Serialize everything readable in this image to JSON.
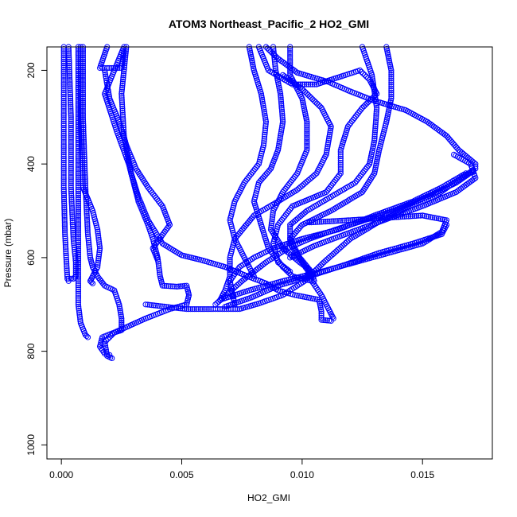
{
  "chart_data": {
    "type": "scatter",
    "title": "ATOM3 Northeast_Pacific_2 HO2_GMI",
    "xlabel": "HO2_GMI",
    "ylabel": "Pressure (mbar)",
    "xlim": [
      -0.0006,
      0.0179
    ],
    "ylim": [
      1030,
      150
    ],
    "y_reversed": true,
    "grid": false,
    "legend": "none",
    "marker": "open-circle",
    "color": "#0000ff",
    "x_ticks": [
      0.0,
      0.005,
      0.01,
      0.015
    ],
    "x_tick_labels": [
      "0.000",
      "0.005",
      "0.010",
      "0.015"
    ],
    "y_ticks": [
      200,
      400,
      600,
      800,
      1000
    ],
    "y_tick_labels": [
      "200",
      "400",
      "600",
      "800",
      "1000"
    ],
    "series": [
      {
        "points": [
          [
            0.0001,
            150
          ],
          [
            0.0001,
            300
          ],
          [
            0.0001,
            450
          ],
          [
            0.00015,
            550
          ],
          [
            0.0002,
            600
          ],
          [
            0.00025,
            645
          ],
          [
            0.0003,
            650
          ]
        ]
      },
      {
        "points": [
          [
            0.0003,
            150
          ],
          [
            0.0004,
            300
          ],
          [
            0.0004,
            450
          ],
          [
            0.0005,
            560
          ],
          [
            0.0006,
            610
          ],
          [
            0.0006,
            640
          ],
          [
            0.0005,
            645
          ],
          [
            0.0003,
            645
          ]
        ]
      },
      {
        "points": [
          [
            0.0007,
            150
          ],
          [
            0.0007,
            250
          ],
          [
            0.0007,
            350
          ],
          [
            0.0007,
            450
          ],
          [
            0.0007,
            550
          ],
          [
            0.0007,
            650
          ],
          [
            0.0007,
            700
          ],
          [
            0.0008,
            740
          ],
          [
            0.001,
            765
          ],
          [
            0.0011,
            770
          ]
        ]
      },
      {
        "points": [
          [
            0.0008,
            150
          ],
          [
            0.0008,
            300
          ],
          [
            0.0009,
            450
          ],
          [
            0.0013,
            500
          ],
          [
            0.0015,
            540
          ],
          [
            0.0016,
            580
          ],
          [
            0.0015,
            620
          ],
          [
            0.0013,
            640
          ],
          [
            0.0012,
            650
          ],
          [
            0.0013,
            655
          ]
        ]
      },
      {
        "points": [
          [
            0.0009,
            150
          ],
          [
            0.0009,
            300
          ],
          [
            0.001,
            450
          ],
          [
            0.0011,
            550
          ],
          [
            0.0012,
            600
          ],
          [
            0.0013,
            620
          ],
          [
            0.0015,
            640
          ],
          [
            0.0018,
            660
          ],
          [
            0.0022,
            670
          ],
          [
            0.0024,
            700
          ],
          [
            0.0025,
            730
          ],
          [
            0.0025,
            755
          ],
          [
            0.0022,
            760
          ],
          [
            0.0017,
            770
          ],
          [
            0.0016,
            790
          ],
          [
            0.0018,
            805
          ],
          [
            0.002,
            808
          ]
        ]
      },
      {
        "points": [
          [
            0.0019,
            150
          ],
          [
            0.0016,
            195
          ],
          [
            0.0019,
            195
          ],
          [
            0.0025,
            195
          ],
          [
            0.0026,
            160
          ]
        ]
      },
      {
        "points": [
          [
            0.0026,
            150
          ],
          [
            0.0018,
            250
          ],
          [
            0.0023,
            330
          ],
          [
            0.0028,
            400
          ],
          [
            0.0032,
            480
          ],
          [
            0.0036,
            530
          ],
          [
            0.0038,
            560
          ],
          [
            0.004,
            600
          ],
          [
            0.0041,
            640
          ],
          [
            0.0042,
            660
          ],
          [
            0.0048,
            662
          ],
          [
            0.0052,
            660
          ],
          [
            0.0053,
            680
          ],
          [
            0.0052,
            700
          ],
          [
            0.0045,
            710
          ],
          [
            0.0035,
            730
          ],
          [
            0.0022,
            760
          ],
          [
            0.0018,
            780
          ],
          [
            0.0019,
            810
          ],
          [
            0.0021,
            815
          ]
        ]
      },
      {
        "points": [
          [
            0.0018,
            200
          ],
          [
            0.002,
            260
          ],
          [
            0.0024,
            310
          ],
          [
            0.0027,
            360
          ],
          [
            0.0031,
            410
          ],
          [
            0.0036,
            450
          ],
          [
            0.0042,
            490
          ],
          [
            0.0045,
            530
          ],
          [
            0.0038,
            580
          ],
          [
            0.004,
            605
          ]
        ]
      },
      {
        "points": [
          [
            0.0027,
            150
          ],
          [
            0.0025,
            250
          ],
          [
            0.0026,
            340
          ],
          [
            0.0029,
            420
          ],
          [
            0.0032,
            470
          ],
          [
            0.0036,
            520
          ],
          [
            0.0042,
            570
          ],
          [
            0.005,
            595
          ],
          [
            0.0058,
            605
          ],
          [
            0.0068,
            620
          ],
          [
            0.0075,
            635
          ],
          [
            0.0085,
            655
          ],
          [
            0.009,
            670
          ],
          [
            0.0097,
            680
          ],
          [
            0.0107,
            690
          ],
          [
            0.0108,
            715
          ],
          [
            0.0108,
            733
          ],
          [
            0.0112,
            735
          ]
        ]
      },
      {
        "points": [
          [
            0.0035,
            700
          ],
          [
            0.0052,
            710
          ],
          [
            0.0063,
            710
          ],
          [
            0.0065,
            710
          ],
          [
            0.0074,
            710
          ],
          [
            0.0082,
            698
          ],
          [
            0.0092,
            680
          ],
          [
            0.0101,
            650
          ],
          [
            0.0109,
            610
          ],
          [
            0.012,
            560
          ],
          [
            0.0133,
            520
          ],
          [
            0.0145,
            490
          ],
          [
            0.0155,
            470
          ],
          [
            0.0163,
            440
          ],
          [
            0.0172,
            410
          ],
          [
            0.0172,
            400
          ],
          [
            0.0165,
            370
          ],
          [
            0.016,
            340
          ],
          [
            0.0152,
            310
          ],
          [
            0.0143,
            285
          ],
          [
            0.013,
            265
          ],
          [
            0.012,
            245
          ],
          [
            0.0111,
            225
          ],
          [
            0.0098,
            205
          ],
          [
            0.009,
            175
          ],
          [
            0.0085,
            150
          ]
        ]
      },
      {
        "points": [
          [
            0.0088,
            150
          ],
          [
            0.0089,
            200
          ],
          [
            0.0091,
            250
          ],
          [
            0.0092,
            310
          ],
          [
            0.009,
            370
          ],
          [
            0.0087,
            410
          ],
          [
            0.0082,
            440
          ],
          [
            0.008,
            480
          ],
          [
            0.0083,
            530
          ],
          [
            0.0086,
            580
          ],
          [
            0.0092,
            620
          ],
          [
            0.0096,
            640
          ],
          [
            0.0104,
            650
          ],
          [
            0.0108,
            680
          ],
          [
            0.0112,
            720
          ],
          [
            0.0113,
            730
          ]
        ]
      },
      {
        "points": [
          [
            0.0095,
            150
          ],
          [
            0.0095,
            210
          ],
          [
            0.01,
            260
          ],
          [
            0.0102,
            310
          ],
          [
            0.0102,
            370
          ],
          [
            0.0098,
            420
          ],
          [
            0.0092,
            460
          ],
          [
            0.0088,
            500
          ],
          [
            0.0087,
            540
          ],
          [
            0.0092,
            580
          ],
          [
            0.0099,
            610
          ],
          [
            0.0104,
            630
          ],
          [
            0.0105,
            650
          ]
        ]
      },
      {
        "points": [
          [
            0.0125,
            150
          ],
          [
            0.0129,
            210
          ],
          [
            0.0131,
            280
          ],
          [
            0.013,
            350
          ],
          [
            0.0128,
            400
          ],
          [
            0.0122,
            440
          ],
          [
            0.0112,
            470
          ],
          [
            0.0102,
            500
          ],
          [
            0.0095,
            530
          ],
          [
            0.0095,
            570
          ],
          [
            0.01,
            610
          ],
          [
            0.0104,
            640
          ]
        ]
      },
      {
        "points": [
          [
            0.0135,
            150
          ],
          [
            0.0137,
            200
          ],
          [
            0.0137,
            260
          ],
          [
            0.0135,
            310
          ],
          [
            0.0132,
            370
          ],
          [
            0.013,
            420
          ],
          [
            0.0125,
            460
          ],
          [
            0.0112,
            500
          ],
          [
            0.01,
            530
          ],
          [
            0.0095,
            560
          ],
          [
            0.0099,
            600
          ],
          [
            0.0103,
            625
          ],
          [
            0.0102,
            640
          ]
        ]
      },
      {
        "points": [
          [
            0.0082,
            150
          ],
          [
            0.0086,
            200
          ],
          [
            0.0096,
            230
          ],
          [
            0.0106,
            230
          ],
          [
            0.0118,
            210
          ],
          [
            0.0124,
            200
          ],
          [
            0.0128,
            220
          ],
          [
            0.0131,
            250
          ],
          [
            0.0125,
            280
          ],
          [
            0.0119,
            320
          ],
          [
            0.0116,
            370
          ],
          [
            0.0116,
            420
          ],
          [
            0.011,
            460
          ],
          [
            0.0096,
            490
          ],
          [
            0.009,
            530
          ],
          [
            0.0088,
            570
          ],
          [
            0.009,
            610
          ],
          [
            0.0095,
            630
          ]
        ]
      },
      {
        "points": [
          [
            0.0064,
            700
          ],
          [
            0.0075,
            650
          ],
          [
            0.0085,
            610
          ],
          [
            0.0094,
            580
          ],
          [
            0.0103,
            560
          ],
          [
            0.0114,
            540
          ],
          [
            0.0126,
            520
          ],
          [
            0.0138,
            500
          ],
          [
            0.0152,
            470
          ],
          [
            0.0164,
            440
          ],
          [
            0.0171,
            415
          ]
        ]
      },
      {
        "points": [
          [
            0.0066,
            690
          ],
          [
            0.0078,
            670
          ],
          [
            0.0092,
            650
          ],
          [
            0.0108,
            630
          ],
          [
            0.0122,
            610
          ],
          [
            0.0136,
            590
          ],
          [
            0.015,
            570
          ],
          [
            0.0158,
            545
          ],
          [
            0.016,
            520
          ],
          [
            0.015,
            510
          ],
          [
            0.0135,
            515
          ],
          [
            0.012,
            520
          ],
          [
            0.0103,
            525
          ]
        ]
      },
      {
        "points": [
          [
            0.0068,
            705
          ],
          [
            0.0079,
            685
          ],
          [
            0.009,
            660
          ],
          [
            0.0103,
            640
          ],
          [
            0.0118,
            615
          ],
          [
            0.0132,
            590
          ],
          [
            0.0146,
            570
          ],
          [
            0.0158,
            550
          ],
          [
            0.016,
            530
          ]
        ]
      },
      {
        "points": [
          [
            0.0072,
            700
          ],
          [
            0.007,
            650
          ],
          [
            0.0074,
            620
          ],
          [
            0.008,
            600
          ],
          [
            0.0088,
            580
          ],
          [
            0.01,
            560
          ],
          [
            0.0115,
            540
          ],
          [
            0.013,
            510
          ],
          [
            0.0146,
            480
          ],
          [
            0.0158,
            450
          ],
          [
            0.0168,
            420
          ]
        ]
      },
      {
        "points": [
          [
            0.0095,
            600
          ],
          [
            0.0105,
            575
          ],
          [
            0.0118,
            550
          ],
          [
            0.0134,
            520
          ],
          [
            0.015,
            490
          ],
          [
            0.0164,
            460
          ],
          [
            0.0172,
            430
          ],
          [
            0.017,
            400
          ],
          [
            0.0163,
            380
          ]
        ]
      },
      {
        "points": [
          [
            0.0092,
            210
          ],
          [
            0.01,
            240
          ],
          [
            0.0108,
            280
          ],
          [
            0.0112,
            320
          ],
          [
            0.011,
            380
          ],
          [
            0.0106,
            420
          ],
          [
            0.0098,
            455
          ],
          [
            0.009,
            480
          ],
          [
            0.008,
            510
          ],
          [
            0.0072,
            560
          ],
          [
            0.007,
            600
          ],
          [
            0.007,
            640
          ],
          [
            0.0068,
            670
          ],
          [
            0.0066,
            690
          ]
        ]
      },
      {
        "points": [
          [
            0.0078,
            150
          ],
          [
            0.008,
            200
          ],
          [
            0.0083,
            250
          ],
          [
            0.0085,
            310
          ],
          [
            0.0084,
            360
          ],
          [
            0.0082,
            400
          ],
          [
            0.0076,
            440
          ],
          [
            0.0072,
            480
          ],
          [
            0.007,
            520
          ],
          [
            0.0072,
            560
          ],
          [
            0.0076,
            600
          ],
          [
            0.008,
            640
          ]
        ]
      }
    ]
  }
}
